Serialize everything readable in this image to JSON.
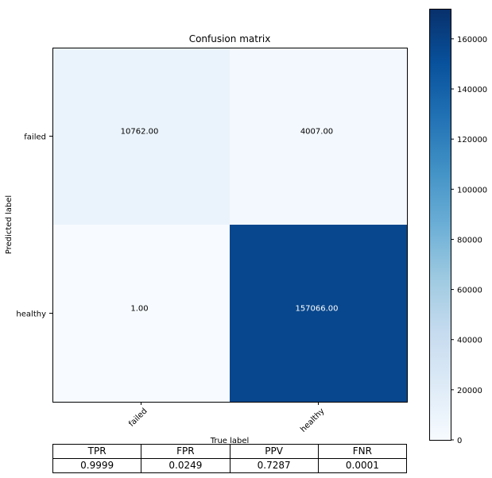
{
  "chart_data": {
    "type": "heatmap",
    "title": "Confusion matrix",
    "xlabel": "True label",
    "ylabel": "Predicted label",
    "x_categories": [
      "failed",
      "healthy"
    ],
    "y_categories": [
      "failed",
      "healthy"
    ],
    "values": [
      [
        10762.0,
        4007.0
      ],
      [
        1.0,
        157066.0
      ]
    ],
    "cell_labels": [
      [
        "10762.00",
        "4007.00"
      ],
      [
        "1.00",
        "157066.00"
      ]
    ],
    "colormap": "Blues",
    "colorbar": {
      "range": [
        0,
        172000
      ],
      "ticks": [
        0,
        20000,
        40000,
        60000,
        80000,
        100000,
        120000,
        140000,
        160000
      ],
      "tick_labels": [
        "0",
        "20000",
        "40000",
        "60000",
        "80000",
        "100000",
        "120000",
        "140000",
        "160000"
      ]
    }
  },
  "metrics_table": {
    "headers": [
      "TPR",
      "FPR",
      "PPV",
      "FNR"
    ],
    "values": [
      "0.9999",
      "0.0249",
      "0.7287",
      "0.0001"
    ]
  }
}
